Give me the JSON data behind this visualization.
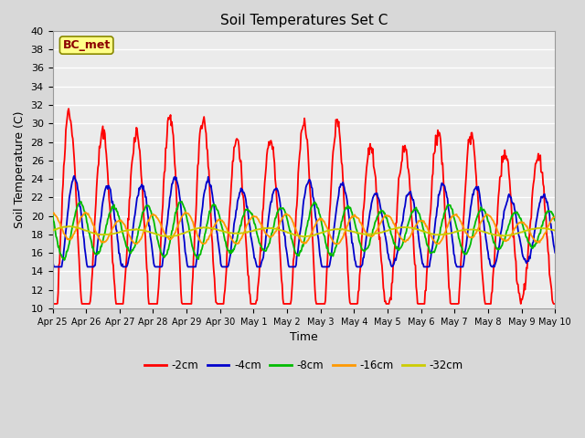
{
  "title": "Soil Temperatures Set C",
  "xlabel": "Time",
  "ylabel": "Soil Temperature (C)",
  "ylim": [
    10,
    40
  ],
  "yticks": [
    10,
    12,
    14,
    16,
    18,
    20,
    22,
    24,
    26,
    28,
    30,
    32,
    34,
    36,
    38,
    40
  ],
  "annotation": "BC_met",
  "legend_entries": [
    "-2cm",
    "-4cm",
    "-8cm",
    "-16cm",
    "-32cm"
  ],
  "legend_colors": [
    "#ff0000",
    "#0000cc",
    "#00bb00",
    "#ff9900",
    "#cccc00"
  ],
  "xtick_labels": [
    "Apr 25",
    "Apr 26",
    "Apr 27",
    "Apr 28",
    "Apr 29",
    "Apr 30",
    "May 1",
    "May 2",
    "May 3",
    "May 4",
    "May 5",
    "May 6",
    "May 7",
    "May 8",
    "May 9",
    "May 10"
  ],
  "fig_bg": "#d8d8d8",
  "plot_bg": "#ebebeb"
}
